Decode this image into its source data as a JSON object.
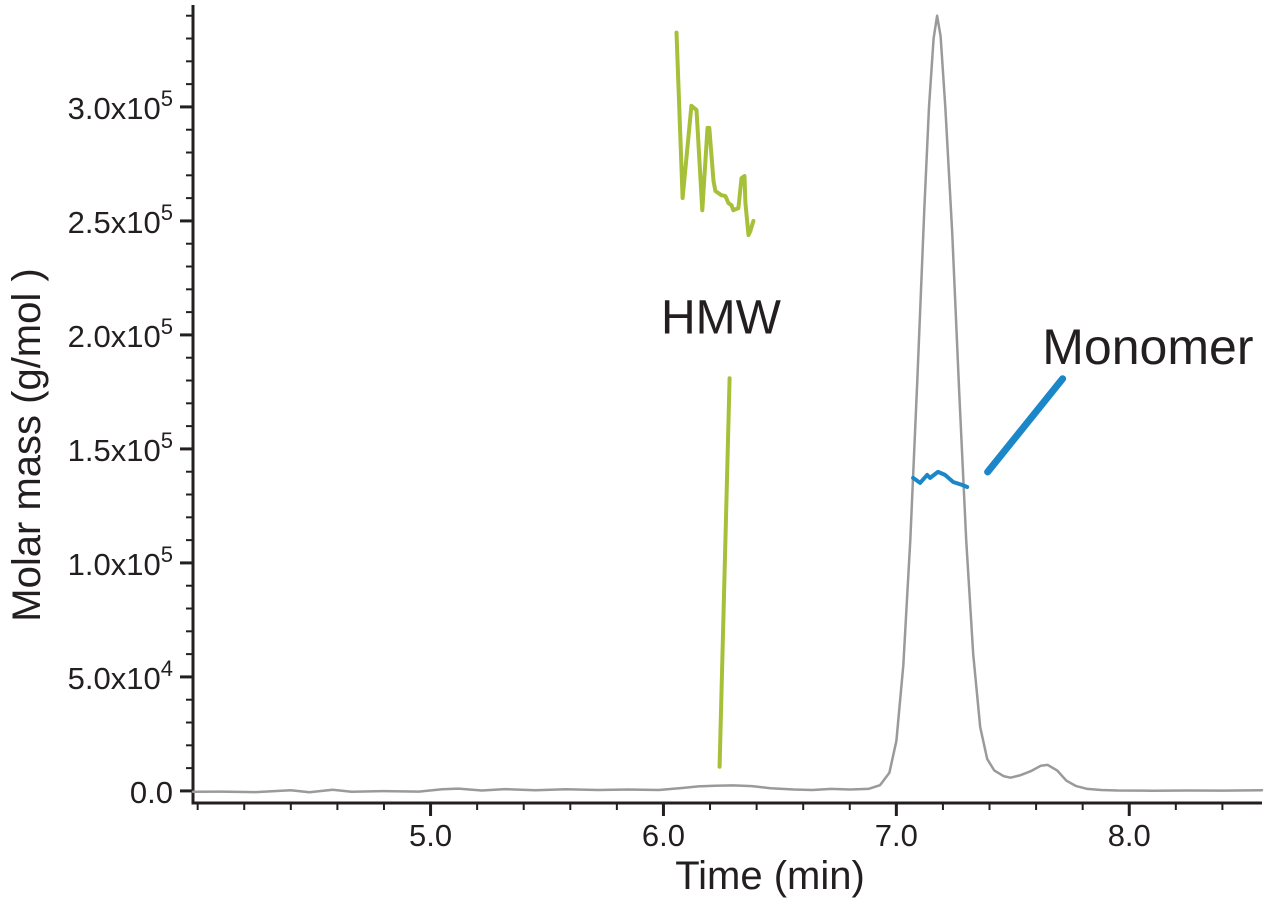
{
  "chart_data": {
    "type": "line",
    "title": "",
    "xlabel": "Time (min)",
    "ylabel": "Molar mass (g/mol )",
    "xlim": [
      3.98,
      8.57
    ],
    "ylim": [
      -5300,
      344700
    ],
    "grid": false,
    "legend_position": "none",
    "axis_color": "#231f20",
    "x_ticks": {
      "major": [
        {
          "value": 5.0,
          "label": "5.0"
        },
        {
          "value": 6.0,
          "label": "6.0"
        },
        {
          "value": 7.0,
          "label": "7.0"
        },
        {
          "value": 8.0,
          "label": "8.0"
        }
      ],
      "minor_start": 4.0,
      "minor_step": 0.2,
      "minor_end": 8.4
    },
    "y_ticks": {
      "major": [
        {
          "value": 0,
          "label": "0.0"
        },
        {
          "value": 50000,
          "label": "5.0x10^4"
        },
        {
          "value": 100000,
          "label": "1.0x10^5"
        },
        {
          "value": 150000,
          "label": "1.5x10^5"
        },
        {
          "value": 200000,
          "label": "2.0x10^5"
        },
        {
          "value": 250000,
          "label": "2.5x10^5"
        },
        {
          "value": 300000,
          "label": "3.0x10^5"
        }
      ],
      "minor_start": 10000,
      "minor_step": 10000,
      "minor_end": 340000
    },
    "series": [
      {
        "name": "Chromatogram trace",
        "key": "uv-trace",
        "color": "#9a9a9a",
        "width": 2.5,
        "points": [
          [
            3.98,
            -400
          ],
          [
            4.1,
            -300
          ],
          [
            4.25,
            -500
          ],
          [
            4.4,
            300
          ],
          [
            4.48,
            -600
          ],
          [
            4.58,
            500
          ],
          [
            4.66,
            -400
          ],
          [
            4.8,
            -100
          ],
          [
            4.95,
            -300
          ],
          [
            5.05,
            700
          ],
          [
            5.12,
            1000
          ],
          [
            5.22,
            200
          ],
          [
            5.32,
            800
          ],
          [
            5.45,
            300
          ],
          [
            5.58,
            700
          ],
          [
            5.72,
            400
          ],
          [
            5.85,
            600
          ],
          [
            5.98,
            400
          ],
          [
            6.08,
            1300
          ],
          [
            6.15,
            2000
          ],
          [
            6.22,
            2300
          ],
          [
            6.3,
            2400
          ],
          [
            6.38,
            2100
          ],
          [
            6.46,
            1200
          ],
          [
            6.56,
            600
          ],
          [
            6.64,
            400
          ],
          [
            6.72,
            900
          ],
          [
            6.8,
            600
          ],
          [
            6.88,
            900
          ],
          [
            6.93,
            2500
          ],
          [
            6.97,
            8000
          ],
          [
            7.0,
            22000
          ],
          [
            7.03,
            55000
          ],
          [
            7.06,
            110000
          ],
          [
            7.09,
            180000
          ],
          [
            7.12,
            255000
          ],
          [
            7.14,
            300000
          ],
          [
            7.16,
            330000
          ],
          [
            7.175,
            340000
          ],
          [
            7.19,
            331000
          ],
          [
            7.21,
            300000
          ],
          [
            7.24,
            245000
          ],
          [
            7.27,
            175000
          ],
          [
            7.3,
            110000
          ],
          [
            7.33,
            60000
          ],
          [
            7.36,
            28000
          ],
          [
            7.39,
            14000
          ],
          [
            7.42,
            9000
          ],
          [
            7.46,
            6500
          ],
          [
            7.49,
            5800
          ],
          [
            7.53,
            6800
          ],
          [
            7.58,
            8800
          ],
          [
            7.62,
            11000
          ],
          [
            7.65,
            11400
          ],
          [
            7.69,
            9000
          ],
          [
            7.73,
            4500
          ],
          [
            7.77,
            2200
          ],
          [
            7.82,
            900
          ],
          [
            7.88,
            400
          ],
          [
            7.95,
            200
          ],
          [
            8.1,
            100
          ],
          [
            8.25,
            200
          ],
          [
            8.4,
            150
          ],
          [
            8.57,
            250
          ]
        ]
      },
      {
        "name": "HMW molar mass",
        "key": "hmw-mass",
        "color": "#a6c03a",
        "width": 4,
        "points": [
          [
            6.056,
            332600
          ],
          [
            6.082,
            260000
          ],
          [
            6.12,
            300500
          ],
          [
            6.142,
            298700
          ],
          [
            6.167,
            254700
          ],
          [
            6.189,
            290800
          ],
          [
            6.197,
            290800
          ],
          [
            6.215,
            267500
          ],
          [
            6.223,
            263100
          ],
          [
            6.249,
            261300
          ],
          [
            6.266,
            260900
          ],
          [
            6.279,
            257800
          ],
          [
            6.292,
            256900
          ],
          [
            6.3,
            254700
          ],
          [
            6.322,
            255600
          ],
          [
            6.335,
            268800
          ],
          [
            6.348,
            269700
          ],
          [
            6.352,
            257800
          ],
          [
            6.365,
            243800
          ],
          [
            6.373,
            245500
          ],
          [
            6.386,
            250000
          ]
        ]
      },
      {
        "name": "Monomer molar mass",
        "key": "monomer-mass",
        "color": "#1b87c9",
        "width": 4,
        "points": [
          [
            7.072,
            137300
          ],
          [
            7.102,
            135100
          ],
          [
            7.132,
            138600
          ],
          [
            7.145,
            137300
          ],
          [
            7.179,
            139900
          ],
          [
            7.209,
            138600
          ],
          [
            7.244,
            135500
          ],
          [
            7.282,
            134200
          ],
          [
            7.304,
            133300
          ]
        ]
      }
    ],
    "annotations": [
      {
        "key": "hmw",
        "label": "HMW",
        "color": "#a6c03a",
        "text_pos": [
          6.247,
          207400
        ],
        "font_size": 48,
        "line": {
          "from": [
            6.284,
            181000
          ],
          "to": [
            6.241,
            10600
          ],
          "width": 4
        }
      },
      {
        "key": "monomer",
        "label": "Monomer",
        "color": "#1b87c9",
        "text_pos": [
          8.08,
          194700
        ],
        "font_size": 50,
        "line": {
          "from": [
            7.392,
            139900
          ],
          "to": [
            7.714,
            180800
          ],
          "width": 7
        }
      }
    ]
  }
}
